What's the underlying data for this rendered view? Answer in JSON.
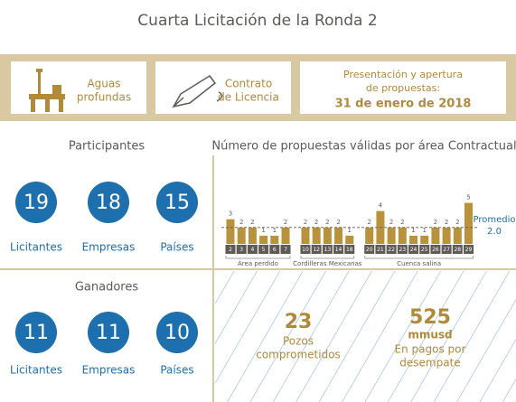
{
  "title": "Cuarta Licitación de la Ronda 2",
  "banner": {
    "item1": [
      "Aguas",
      "profundas"
    ],
    "item2": [
      "Contrato",
      "de Licencia"
    ],
    "item3": [
      "Presentación y apertura",
      "de propuestas:"
    ],
    "date": "31 de enero de 2018"
  },
  "participants": {
    "title": "Participantes",
    "stats": [
      {
        "value": 19,
        "label": "Licitantes"
      },
      {
        "value": 18,
        "label": "Empresas"
      },
      {
        "value": 15,
        "label": "Países"
      }
    ]
  },
  "winners": {
    "title": "Ganadores",
    "stats": [
      {
        "value": 11,
        "label": "Licitantes"
      },
      {
        "value": 11,
        "label": "Empresas"
      },
      {
        "value": 10,
        "label": "Países"
      }
    ]
  },
  "results": [
    {
      "value": 23,
      "unit": null,
      "label": [
        "Pozos",
        "comprometidos"
      ]
    },
    {
      "value": 525,
      "unit": "mmusd",
      "label": [
        "En pagos por",
        "desempate"
      ]
    }
  ],
  "chart_data": {
    "type": "bar",
    "title": "Número de propuestas válidas por área Contractual",
    "color": "#b8923c",
    "groups": [
      {
        "name": "Área perdido",
        "categories": [
          "2",
          "3",
          "4",
          "5",
          "6",
          "7"
        ],
        "values": [
          3,
          2,
          2,
          1,
          1,
          2
        ]
      },
      {
        "name": "Cordilleras Mexicanas",
        "categories": [
          "10",
          "12",
          "13",
          "14",
          "18"
        ],
        "values": [
          2,
          2,
          2,
          2,
          1
        ]
      },
      {
        "name": "Cuenca salina",
        "categories": [
          "20",
          "21",
          "22",
          "23",
          "24",
          "25",
          "26",
          "27",
          "28",
          "29"
        ],
        "values": [
          2,
          4,
          2,
          2,
          1,
          1,
          2,
          2,
          2,
          5
        ]
      }
    ],
    "ylim": [
      0,
      5.5
    ],
    "average_label": "Promedio",
    "average": {
      "value": 2,
      "label": "2.0"
    }
  }
}
